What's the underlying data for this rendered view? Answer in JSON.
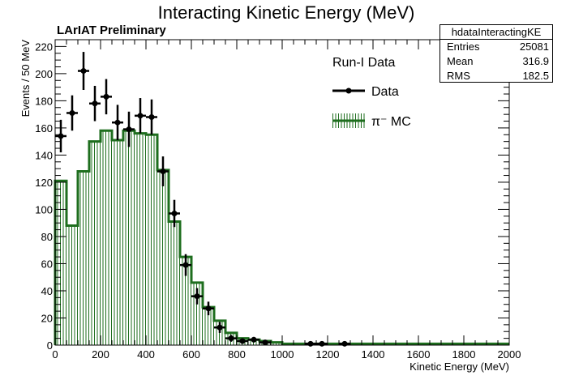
{
  "title": "Interacting Kinetic Energy (MeV)",
  "subtitle": "LArIAT Preliminary",
  "stats_box": {
    "name": "hdataInteractingKE",
    "rows": [
      {
        "label": "Entries",
        "value": "25081"
      },
      {
        "label": "Mean",
        "value": "316.9"
      },
      {
        "label": "RMS",
        "value": "182.5"
      }
    ]
  },
  "legend": {
    "header": "Run-I Data",
    "data_label": "Data",
    "mc_label": "π⁻ MC"
  },
  "colors": {
    "mc": "#1e6e1e",
    "data": "#000000"
  },
  "chart_data": {
    "type": "bar",
    "xlabel": "Kinetic Energy (MeV)",
    "ylabel": "Events / 50 MeV",
    "xlim": [
      0,
      2000
    ],
    "ylim": [
      0,
      225
    ],
    "bin_width": 50,
    "x_ticks": [
      0,
      200,
      400,
      600,
      800,
      1000,
      1200,
      1400,
      1600,
      1800,
      2000
    ],
    "y_ticks": [
      0,
      20,
      40,
      60,
      80,
      100,
      120,
      140,
      160,
      180,
      200,
      220
    ],
    "series": [
      {
        "name": "π⁻ MC",
        "style": "hatched-histogram",
        "bin_values": [
          121,
          88,
          128,
          150,
          158,
          151,
          158,
          156,
          155,
          129,
          91,
          65,
          46,
          28,
          18,
          9,
          5,
          4,
          3,
          2,
          1,
          1,
          1,
          1,
          1,
          1,
          1,
          1,
          1,
          1,
          1,
          1,
          1,
          1,
          1,
          1,
          1,
          1,
          1,
          1
        ]
      },
      {
        "name": "Data",
        "style": "points-with-errors",
        "points": [
          {
            "x": 25,
            "y": 154,
            "err": 12
          },
          {
            "x": 75,
            "y": 171,
            "err": 13
          },
          {
            "x": 125,
            "y": 202,
            "err": 14
          },
          {
            "x": 175,
            "y": 178,
            "err": 13
          },
          {
            "x": 225,
            "y": 183,
            "err": 13
          },
          {
            "x": 275,
            "y": 164,
            "err": 13
          },
          {
            "x": 325,
            "y": 159,
            "err": 13
          },
          {
            "x": 375,
            "y": 169,
            "err": 13
          },
          {
            "x": 425,
            "y": 168,
            "err": 13
          },
          {
            "x": 475,
            "y": 128,
            "err": 11
          },
          {
            "x": 525,
            "y": 97,
            "err": 10
          },
          {
            "x": 575,
            "y": 59,
            "err": 8
          },
          {
            "x": 625,
            "y": 36,
            "err": 6
          },
          {
            "x": 675,
            "y": 27,
            "err": 5
          },
          {
            "x": 725,
            "y": 13,
            "err": 4
          },
          {
            "x": 775,
            "y": 5,
            "err": 2.5
          },
          {
            "x": 825,
            "y": 3,
            "err": 2
          },
          {
            "x": 875,
            "y": 4,
            "err": 2
          },
          {
            "x": 925,
            "y": 2,
            "err": 1.5
          },
          {
            "x": 1125,
            "y": 1,
            "err": 1
          },
          {
            "x": 1175,
            "y": 1,
            "err": 1
          },
          {
            "x": 1275,
            "y": 1,
            "err": 1
          }
        ]
      }
    ]
  }
}
